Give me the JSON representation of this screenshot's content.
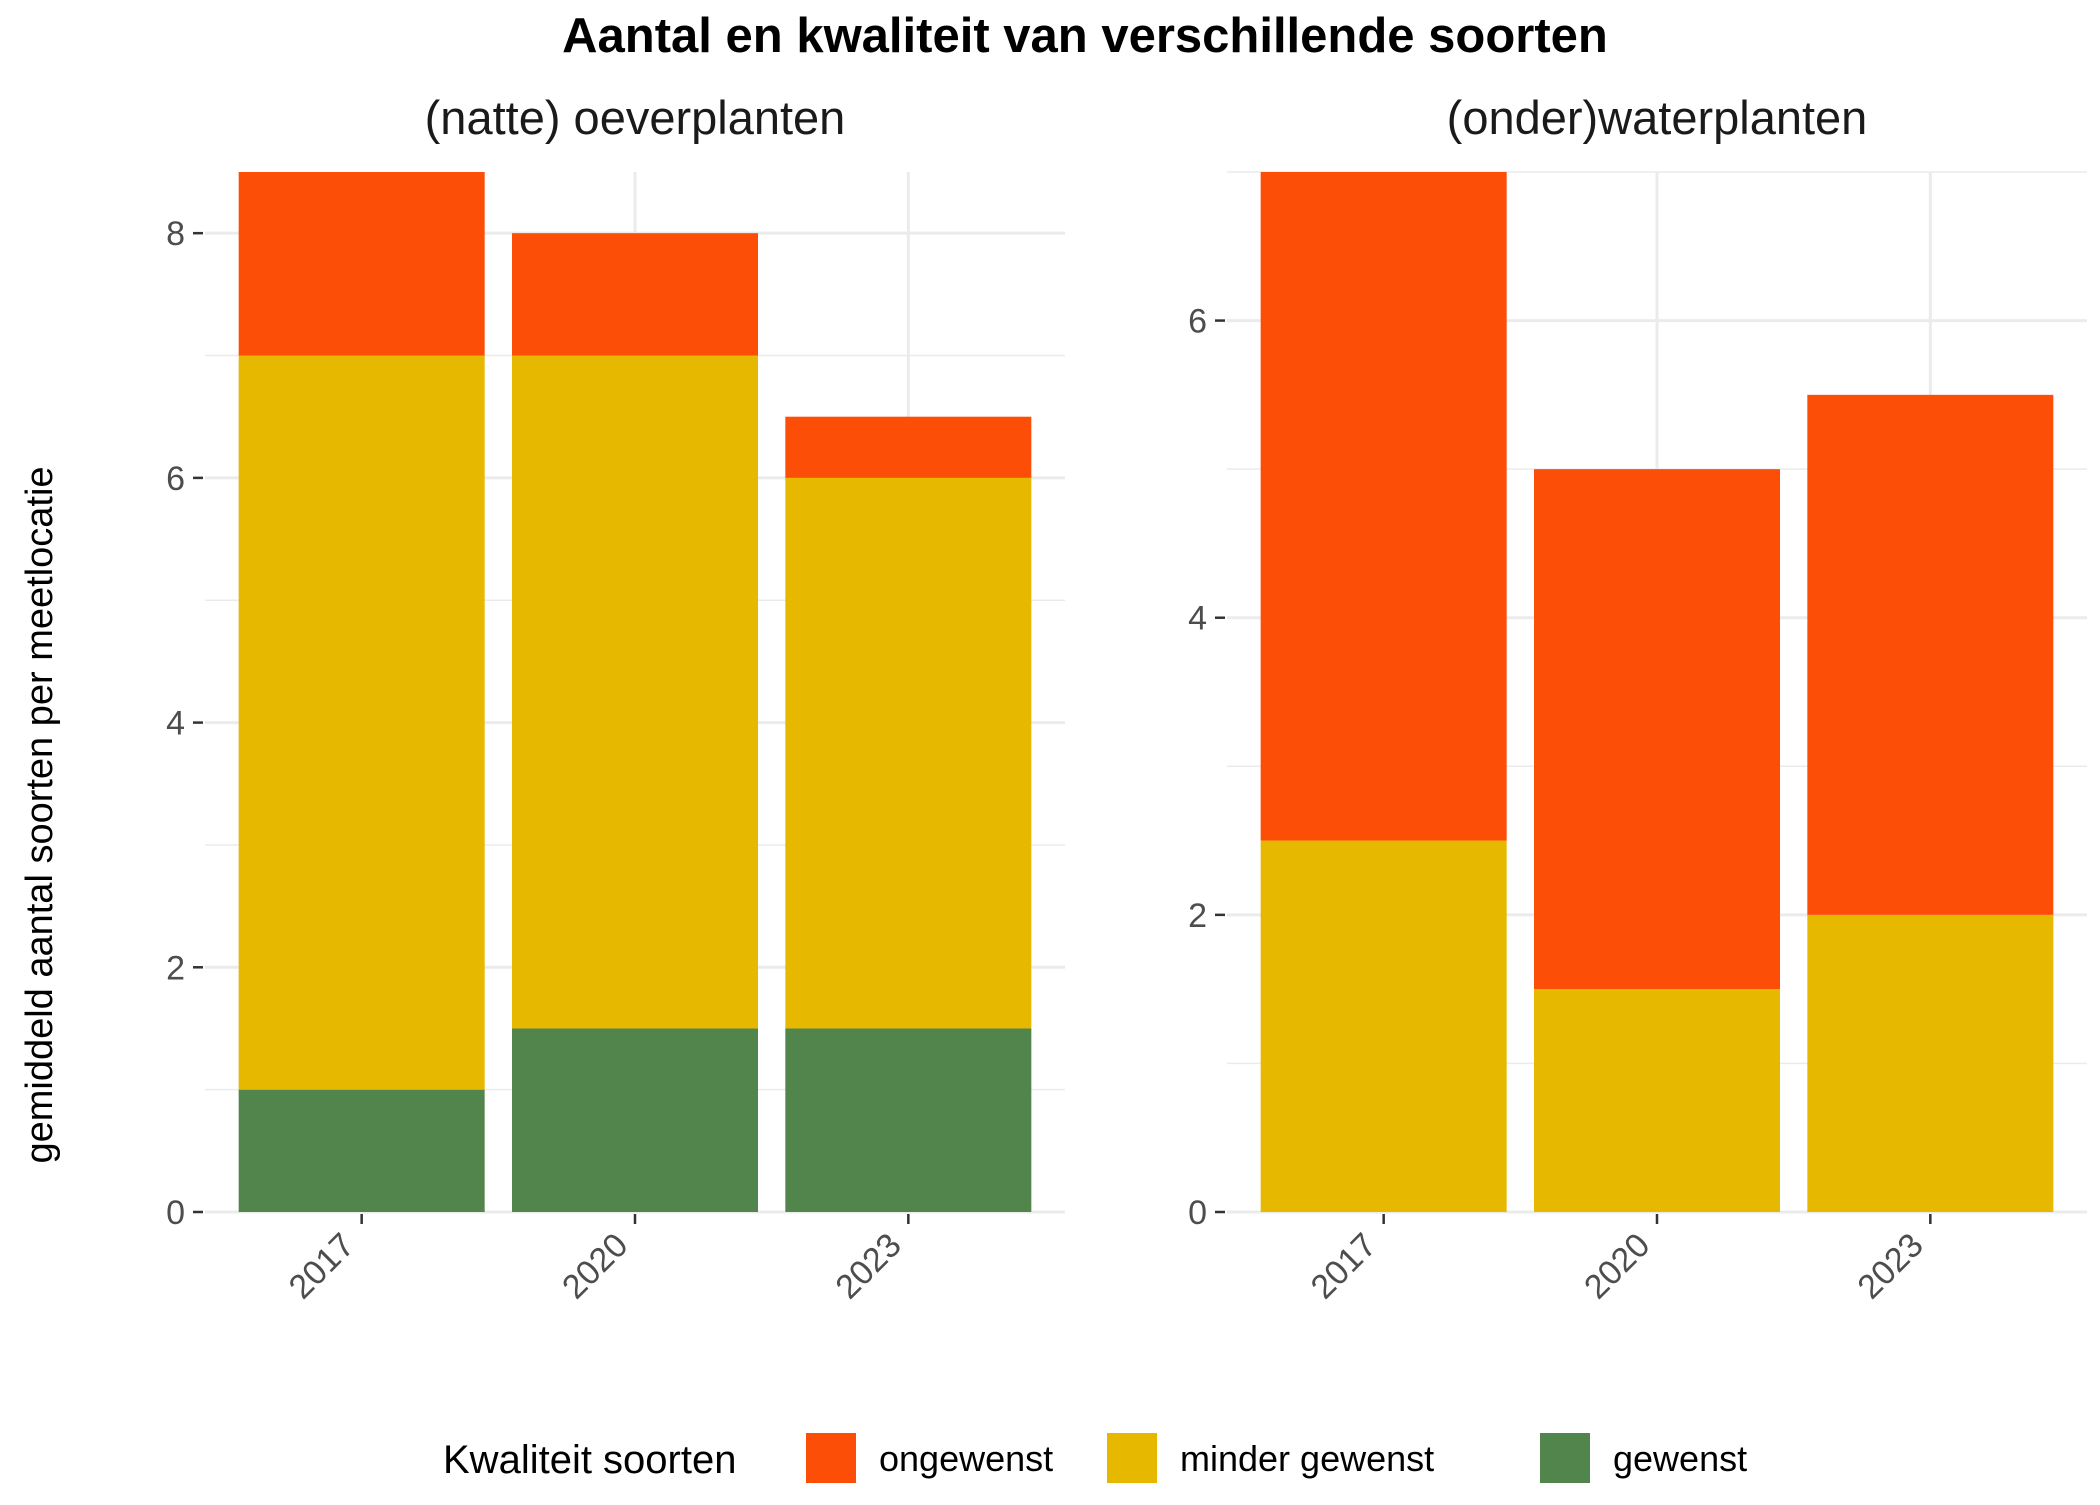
{
  "chart_data": {
    "type": "bar",
    "stacked": true,
    "title": "Aantal en kwaliteit van verschillende soorten",
    "ylabel": "gemiddeld aantal soorten per meetlocatie",
    "legend": {
      "title": "Kwaliteit soorten",
      "position": "bottom",
      "entries": [
        {
          "name": "ongewenst",
          "color": "#FC4E07"
        },
        {
          "name": "minder gewenst",
          "color": "#E7B800"
        },
        {
          "name": "gewenst",
          "color": "#52854C"
        }
      ]
    },
    "grid": true,
    "panels": [
      {
        "title": "(natte) oeverplanten",
        "categories": [
          "2017",
          "2020",
          "2023"
        ],
        "ylim": [
          0,
          8.5
        ],
        "yticks": [
          0,
          2,
          4,
          6,
          8
        ],
        "series": [
          {
            "name": "gewenst",
            "values": [
              1,
              1.5,
              1.5
            ]
          },
          {
            "name": "minder gewenst",
            "values": [
              6,
              5.5,
              4.5
            ]
          },
          {
            "name": "ongewenst",
            "values": [
              1.5,
              1,
              0.5
            ]
          }
        ]
      },
      {
        "title": "(onder)waterplanten",
        "categories": [
          "2017",
          "2020",
          "2023"
        ],
        "ylim": [
          0,
          7
        ],
        "yticks": [
          0,
          2,
          4,
          6
        ],
        "series": [
          {
            "name": "gewenst",
            "values": [
              0,
              0,
              0
            ]
          },
          {
            "name": "minder gewenst",
            "values": [
              2.5,
              1.5,
              2
            ]
          },
          {
            "name": "ongewenst",
            "values": [
              4.5,
              3.5,
              3.5
            ]
          }
        ]
      }
    ]
  }
}
